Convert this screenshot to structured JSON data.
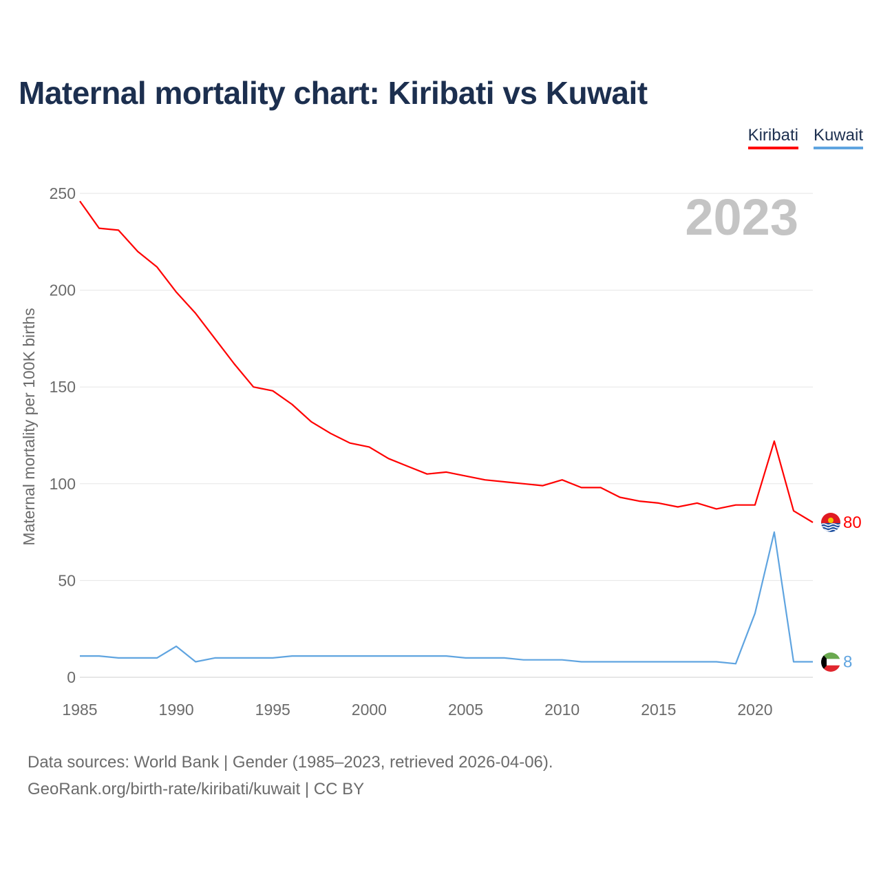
{
  "title": "Maternal mortality chart: Kiribati vs Kuwait",
  "legend": [
    {
      "name": "Kiribati",
      "color": "#ff0000"
    },
    {
      "name": "Kuwait",
      "color": "#5fa4e0"
    }
  ],
  "year_label": "2023",
  "footer": {
    "line1": "Data sources: World Bank | Gender (1985–2023, retrieved 2026-04-06).",
    "line2": "GeoRank.org/birth-rate/kiribati/kuwait | CC BY"
  },
  "chart_data": {
    "type": "line",
    "title": "Maternal mortality chart: Kiribati vs Kuwait",
    "xlabel": "",
    "ylabel": "Maternal mortality per 100K births",
    "xlim": [
      1985,
      2023
    ],
    "ylim": [
      0,
      250
    ],
    "x_ticks": [
      1985,
      1990,
      1995,
      2000,
      2005,
      2010,
      2015,
      2020
    ],
    "y_ticks": [
      0,
      50,
      100,
      150,
      200,
      250
    ],
    "grid": true,
    "x": [
      1985,
      1986,
      1987,
      1988,
      1989,
      1990,
      1991,
      1992,
      1993,
      1994,
      1995,
      1996,
      1997,
      1998,
      1999,
      2000,
      2001,
      2002,
      2003,
      2004,
      2005,
      2006,
      2007,
      2008,
      2009,
      2010,
      2011,
      2012,
      2013,
      2014,
      2015,
      2016,
      2017,
      2018,
      2019,
      2020,
      2021,
      2022,
      2023
    ],
    "series": [
      {
        "name": "Kiribati",
        "color": "#ff0000",
        "end_label": "80",
        "values": [
          246,
          232,
          231,
          220,
          212,
          199,
          188,
          175,
          162,
          150,
          148,
          141,
          132,
          126,
          121,
          119,
          113,
          109,
          105,
          106,
          104,
          102,
          101,
          100,
          99,
          102,
          98,
          98,
          93,
          91,
          90,
          88,
          90,
          87,
          89,
          89,
          122,
          86,
          80
        ]
      },
      {
        "name": "Kuwait",
        "color": "#5fa4e0",
        "end_label": "8",
        "values": [
          11,
          11,
          10,
          10,
          10,
          16,
          8,
          10,
          10,
          10,
          10,
          11,
          11,
          11,
          11,
          11,
          11,
          11,
          11,
          11,
          10,
          10,
          10,
          9,
          9,
          9,
          8,
          8,
          8,
          8,
          8,
          8,
          8,
          8,
          7,
          33,
          75,
          8,
          8
        ]
      }
    ]
  }
}
